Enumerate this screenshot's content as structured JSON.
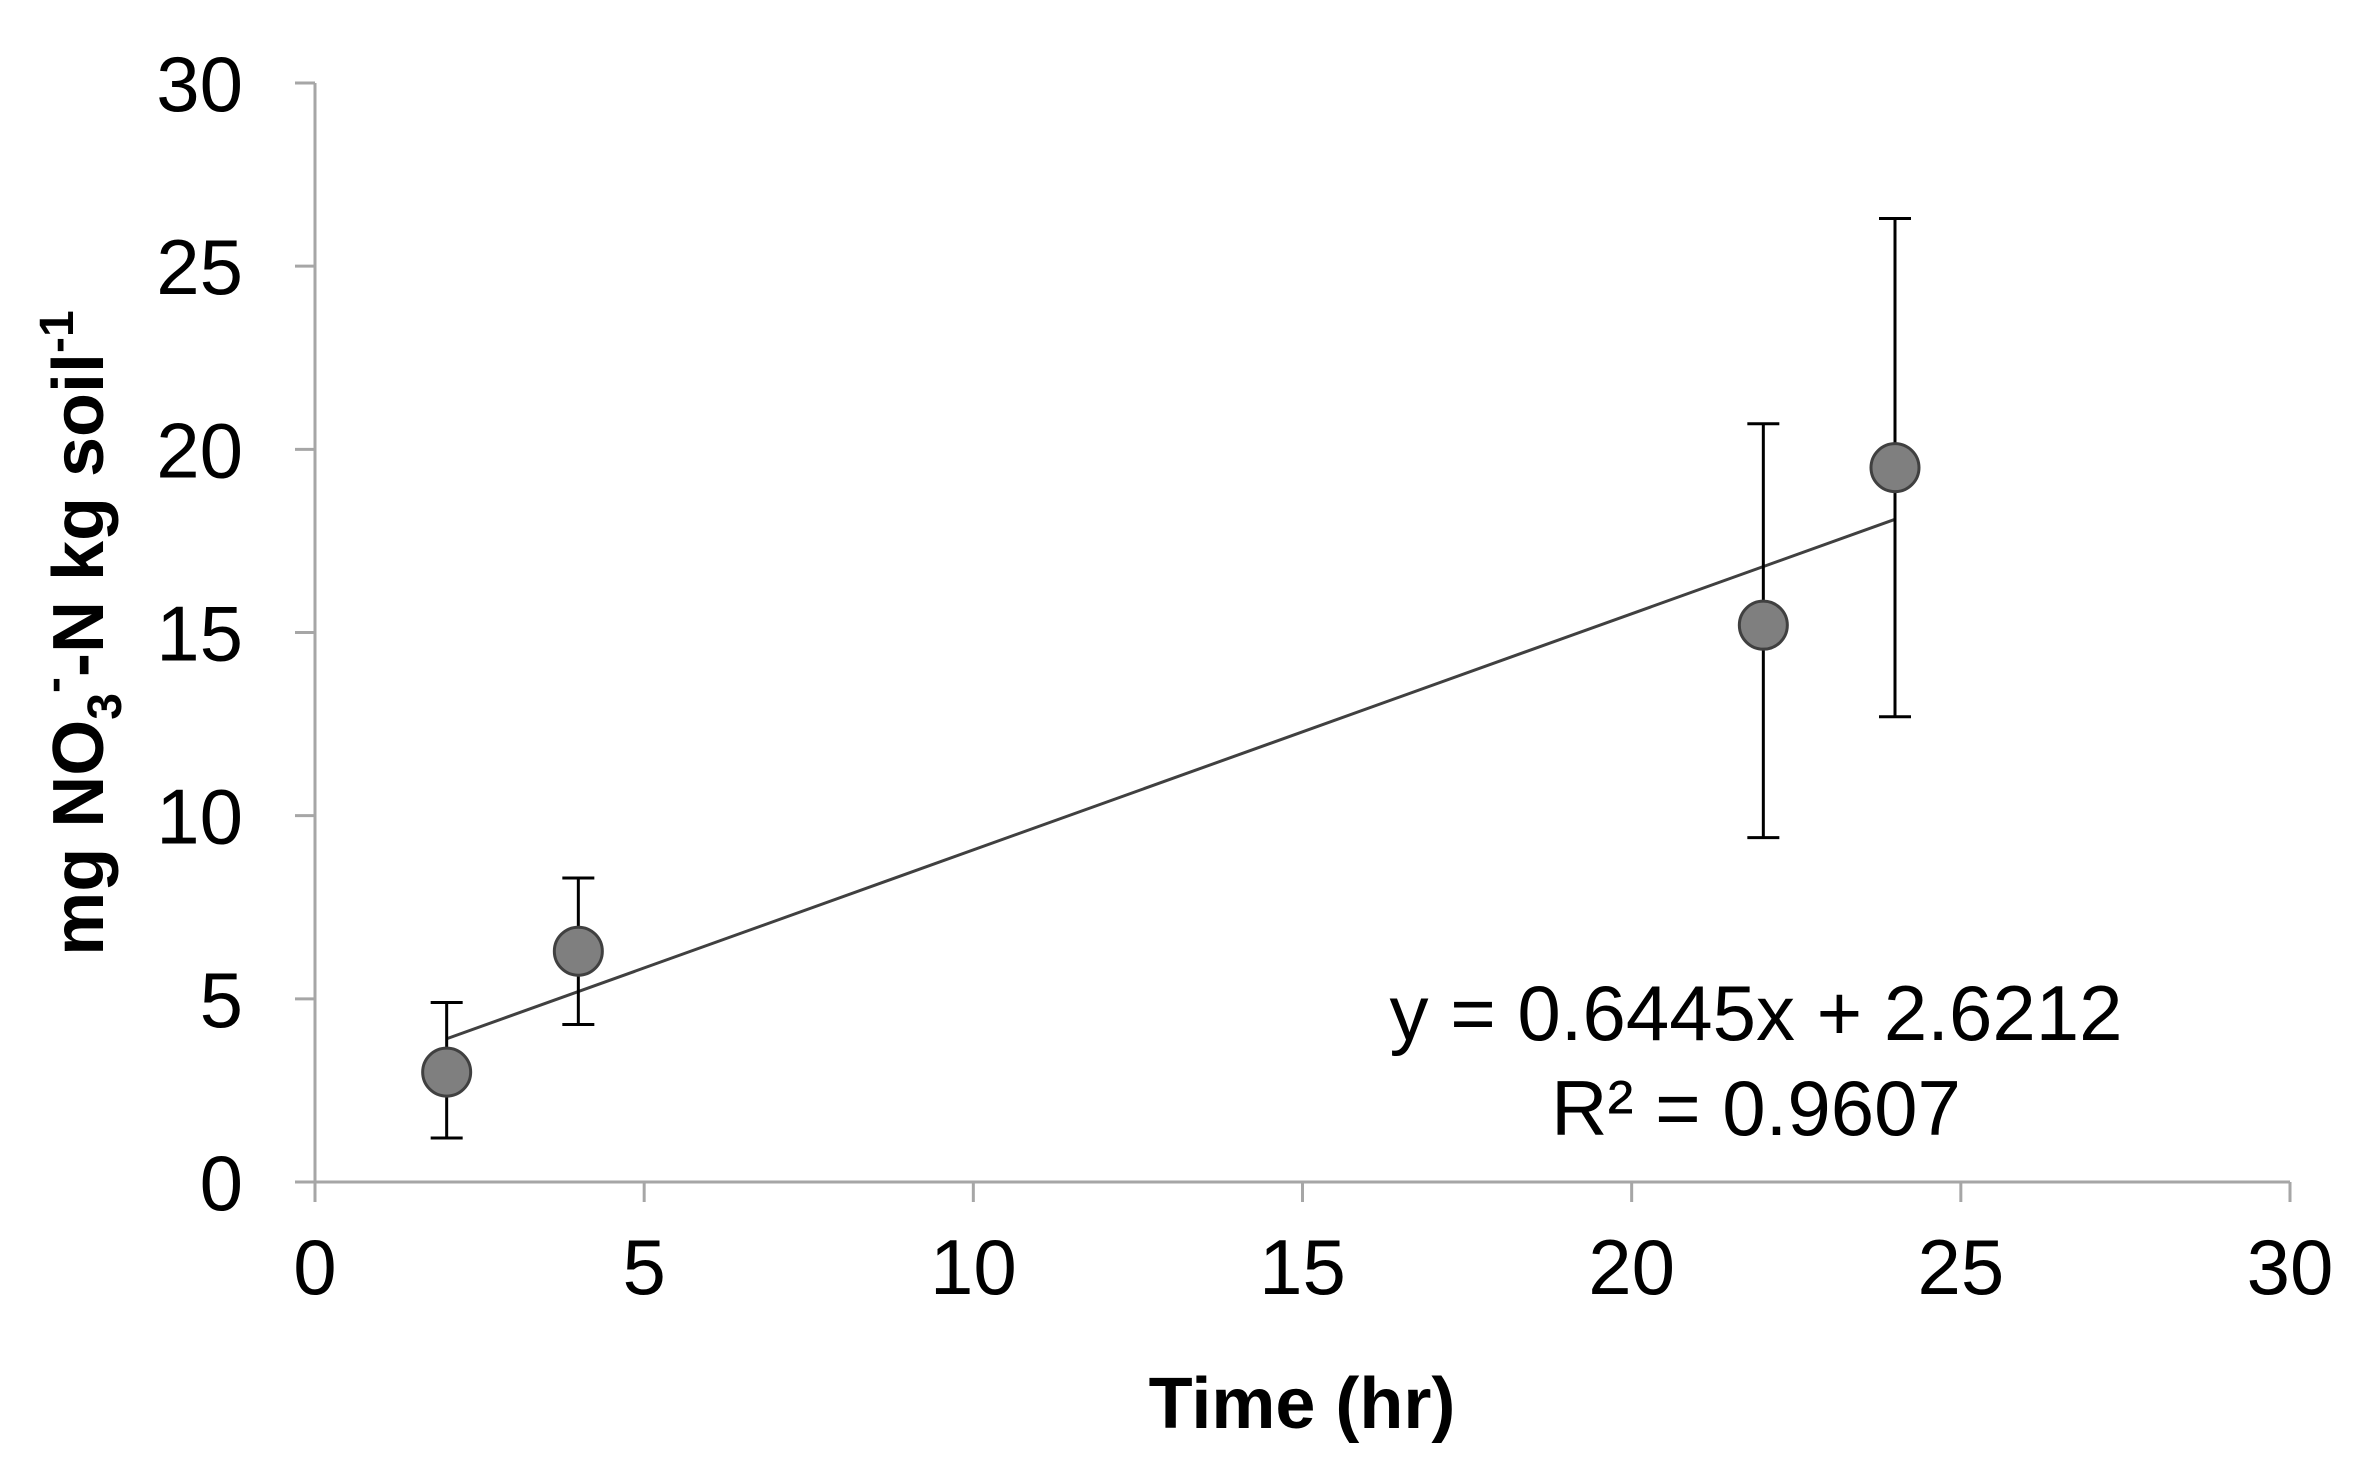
{
  "chart_data": {
    "type": "scatter",
    "title": "",
    "xlabel": "Time (hr)",
    "ylabel": {
      "prefix": "mg NO",
      "sub": "3",
      "sup": "-",
      "middle": "-N kg soil",
      "sup2": "-1"
    },
    "xlim": [
      0,
      30
    ],
    "ylim": [
      0,
      30
    ],
    "xticks": [
      "0",
      "5",
      "10",
      "15",
      "20",
      "25",
      "30"
    ],
    "yticks": [
      "0",
      "5",
      "10",
      "15",
      "20",
      "25",
      "30"
    ],
    "xtick_values": [
      0,
      5,
      10,
      15,
      20,
      25,
      30
    ],
    "ytick_values": [
      0,
      5,
      10,
      15,
      20,
      25,
      30
    ],
    "series": [
      {
        "name": "NO3-N",
        "x": [
          2,
          4,
          22,
          24
        ],
        "y": [
          3.0,
          6.3,
          15.2,
          19.5
        ],
        "error_lower": [
          1.2,
          4.3,
          9.4,
          12.7
        ],
        "error_upper": [
          4.9,
          8.3,
          20.7,
          26.3
        ],
        "color": "#7f7f7f"
      }
    ],
    "trendline": {
      "slope": 0.6445,
      "intercept": 2.6212,
      "x_range": [
        2,
        24
      ],
      "equation": "y = 0.6445x + 2.6212",
      "r2": "R² = 0.9607"
    },
    "grid": false,
    "legend": "none"
  }
}
